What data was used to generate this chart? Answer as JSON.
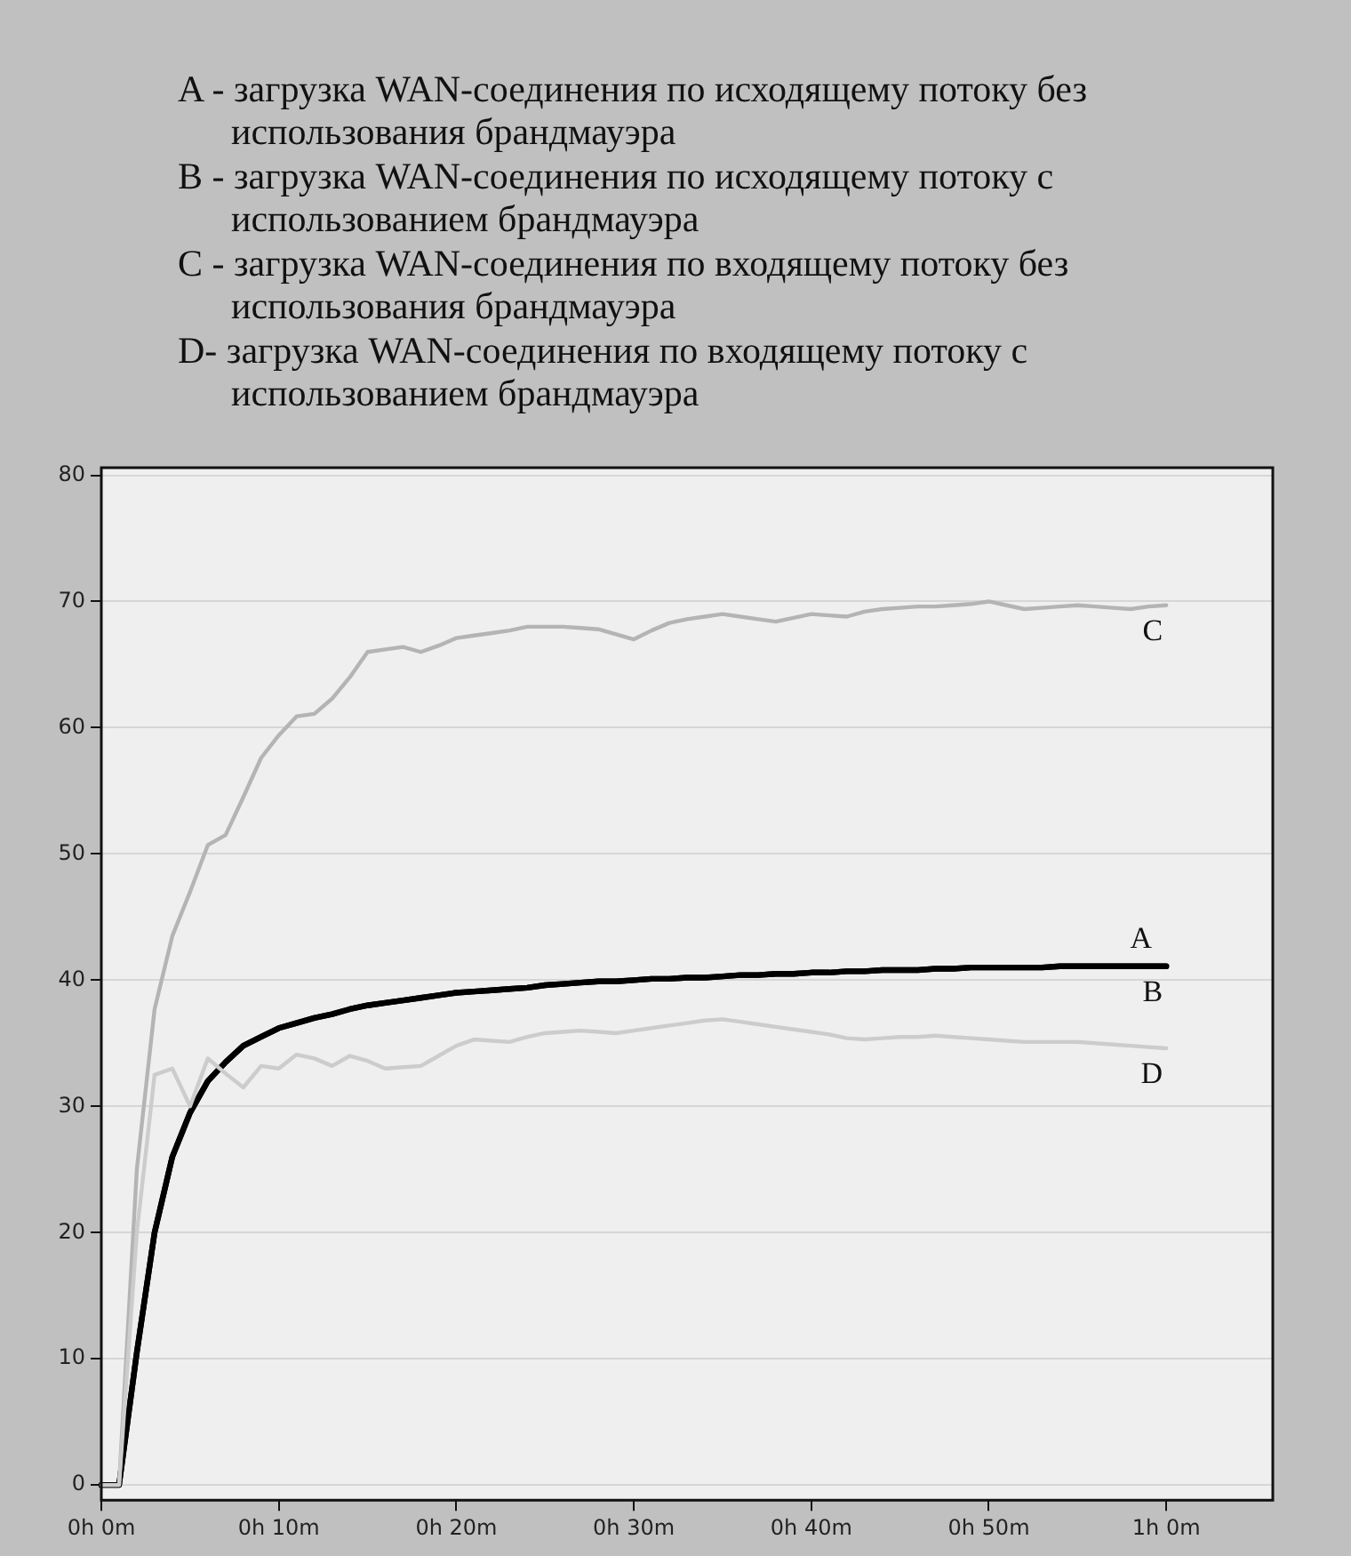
{
  "chart_data": {
    "type": "line",
    "annotations": [
      "A - загрузка WAN-соединения по исходящему потоку без использования брандмауэра",
      "B - загрузка WAN-соединения по исходящему потоку с использованием брандмауэра",
      "C - загрузка WAN-соединения по входящему потоку без использования брандмауэра",
      "D- загрузка WAN-соединения по входящему потоку с использованием брандмауэра"
    ],
    "categories": [
      "0h 0m",
      null,
      null,
      null,
      null,
      null,
      null,
      null,
      null,
      null,
      "0h 10m",
      null,
      null,
      null,
      null,
      null,
      null,
      null,
      null,
      null,
      "0h 20m",
      null,
      null,
      null,
      null,
      null,
      null,
      null,
      null,
      null,
      "0h 30m",
      null,
      null,
      null,
      null,
      null,
      null,
      null,
      null,
      null,
      "0h 40m",
      null,
      null,
      null,
      null,
      null,
      null,
      null,
      null,
      null,
      "0h 50m",
      null,
      null,
      null,
      null,
      null,
      null,
      null,
      null,
      null,
      "1h 0m",
      null,
      null,
      null,
      null,
      null,
      null
    ],
    "ylim": [
      -1.2,
      80.6
    ],
    "yticks": [
      0,
      10,
      20,
      30,
      40,
      50,
      60,
      70,
      80
    ],
    "grid": "y",
    "legend": false,
    "marker": "none",
    "line_style": "solid",
    "series": [
      {
        "name": "A",
        "color": "#000000",
        "values": [
          0,
          0,
          10.5,
          20,
          26,
          29.5,
          32,
          33.5,
          34.8,
          35.5,
          36.2,
          36.6,
          37,
          37.3,
          37.7,
          38,
          38.2,
          38.4,
          38.6,
          38.8,
          39,
          39.1,
          39.2,
          39.3,
          39.4,
          39.6,
          39.7,
          39.8,
          39.9,
          39.9,
          40,
          40.1,
          40.1,
          40.2,
          40.2,
          40.3,
          40.4,
          40.4,
          40.5,
          40.5,
          40.6,
          40.6,
          40.7,
          40.7,
          40.8,
          40.8,
          40.8,
          40.9,
          40.9,
          41,
          41,
          41,
          41,
          41,
          41.1,
          41.1,
          41.1,
          41.1,
          41.1,
          41.1,
          41.1,
          null,
          null,
          null,
          null,
          null,
          null
        ]
      },
      {
        "name": "B",
        "color": "#000000",
        "values": [
          0,
          0,
          10.5,
          20,
          26,
          29.5,
          32,
          33.5,
          34.8,
          35.5,
          36.2,
          36.6,
          37,
          37.3,
          37.7,
          38,
          38.2,
          38.4,
          38.6,
          38.8,
          39,
          39.1,
          39.2,
          39.3,
          39.4,
          39.6,
          39.7,
          39.8,
          39.9,
          39.9,
          40,
          40.1,
          40.1,
          40.2,
          40.2,
          40.3,
          40.4,
          40.4,
          40.5,
          40.5,
          40.6,
          40.6,
          40.7,
          40.7,
          40.8,
          40.8,
          40.8,
          40.9,
          40.9,
          41,
          41,
          41,
          41,
          41,
          41.1,
          41.1,
          41.1,
          41.1,
          41.1,
          41.1,
          41.1,
          null,
          null,
          null,
          null,
          null,
          null
        ]
      },
      {
        "name": "C",
        "color": "#b4b4b4",
        "values": [
          0,
          0,
          25,
          37.7,
          43.5,
          47,
          50.7,
          51.5,
          54.5,
          57.6,
          59.4,
          60.9,
          61.1,
          62.3,
          64,
          66,
          66.2,
          66.4,
          66,
          66.5,
          67.1,
          67.3,
          67.5,
          67.7,
          68,
          68,
          68,
          67.9,
          67.8,
          67.4,
          67,
          67.7,
          68.3,
          68.6,
          68.8,
          69,
          68.8,
          68.6,
          68.4,
          68.7,
          69,
          68.9,
          68.8,
          69.2,
          69.4,
          69.5,
          69.6,
          69.6,
          69.7,
          69.8,
          70,
          69.7,
          69.4,
          69.5,
          69.6,
          69.7,
          69.6,
          69.5,
          69.4,
          69.6,
          69.7,
          null,
          null,
          null,
          null,
          null,
          null
        ]
      },
      {
        "name": "D",
        "color": "#cccccc",
        "values": [
          0,
          0,
          20,
          32.5,
          33,
          30,
          33.8,
          32.6,
          31.5,
          33.2,
          33,
          34.1,
          33.8,
          33.2,
          34,
          33.6,
          33,
          33.1,
          33.2,
          34,
          34.8,
          35.3,
          35.2,
          35.1,
          35.5,
          35.8,
          35.9,
          36,
          35.9,
          35.8,
          36,
          36.2,
          36.4,
          36.6,
          36.8,
          36.9,
          36.7,
          36.5,
          36.3,
          36.1,
          35.9,
          35.7,
          35.4,
          35.3,
          35.4,
          35.5,
          35.5,
          35.6,
          35.5,
          35.4,
          35.3,
          35.2,
          35.1,
          35.1,
          35.1,
          35.1,
          35,
          34.9,
          34.8,
          34.7,
          34.6,
          null,
          null,
          null,
          null,
          null,
          null
        ]
      }
    ]
  }
}
